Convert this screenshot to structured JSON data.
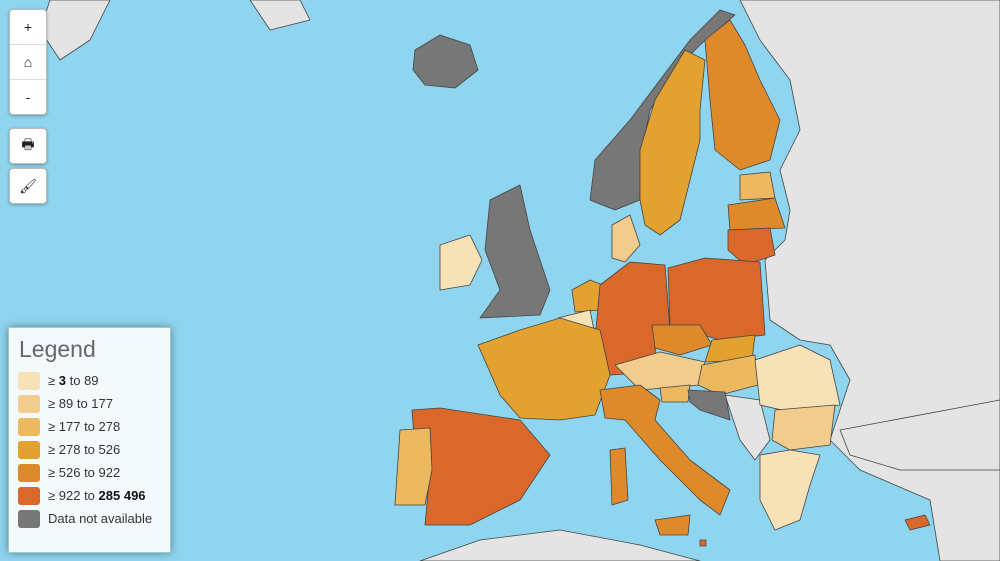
{
  "controls": {
    "zoom_in": "+",
    "home_icon": "home-icon",
    "zoom_out": "-",
    "print_icon": "printer-icon",
    "style_icon": "brush-icon"
  },
  "legend": {
    "title": "Legend",
    "items": [
      {
        "prefix": "≥ ",
        "low": "3",
        "mid": " to ",
        "high": "89",
        "color": "#f7e2b8"
      },
      {
        "prefix": "≥ ",
        "low": "89",
        "mid": " to ",
        "high": "177",
        "color": "#f2cc8c"
      },
      {
        "prefix": "≥ ",
        "low": "177",
        "mid": " to ",
        "high": "278",
        "color": "#ecb95e"
      },
      {
        "prefix": "≥ ",
        "low": "278",
        "mid": " to ",
        "high": "526",
        "color": "#e3a12f"
      },
      {
        "prefix": "≥ ",
        "low": "526",
        "mid": " to ",
        "high": "922",
        "color": "#de8a2a"
      },
      {
        "prefix": "≥ ",
        "low": "922",
        "mid": " to ",
        "high": "285 496",
        "color": "#d9682a"
      },
      {
        "label": "Data not available",
        "color": "#777777"
      }
    ]
  },
  "colors": {
    "sea": "#8fd5ef",
    "non_eu_land": "#e4e4e4"
  }
}
